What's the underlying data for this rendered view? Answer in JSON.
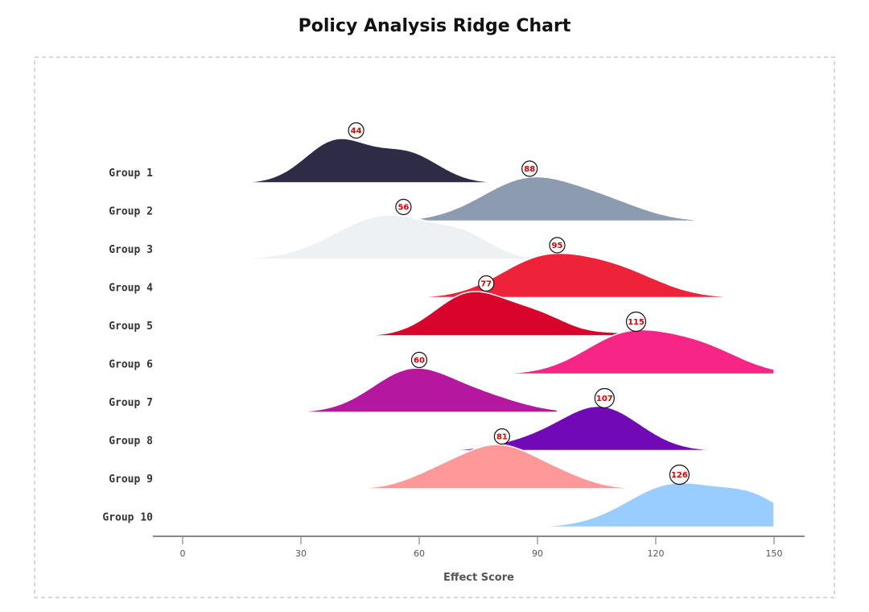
{
  "chart_data": {
    "type": "ridgeline",
    "title": "Policy Analysis Ridge Chart",
    "xlabel": "Effect Score",
    "xlim": [
      -8,
      158
    ],
    "xticks": [
      0,
      30,
      60,
      90,
      120,
      150
    ],
    "tick_labels": [
      "0",
      "30",
      "60",
      "90",
      "120",
      "150"
    ],
    "series": [
      {
        "name": "Group 1",
        "peak": 44,
        "color": "#2d2b45",
        "range": [
          10,
          82
        ],
        "components": [
          {
            "mu": 39,
            "sigma": 8,
            "w": 1.0
          },
          {
            "mu": 57,
            "sigma": 8,
            "w": 0.7
          }
        ]
      },
      {
        "name": "Group 2",
        "peak": 88,
        "color": "#8c9bb0",
        "range": [
          48,
          130
        ],
        "components": [
          {
            "mu": 88,
            "sigma": 12,
            "w": 1.0
          },
          {
            "mu": 108,
            "sigma": 10,
            "w": 0.35
          }
        ]
      },
      {
        "name": "Group 3",
        "peak": 56,
        "color": "#edf1f4",
        "range": [
          15,
          92
        ],
        "components": [
          {
            "mu": 52,
            "sigma": 13,
            "w": 1.0
          },
          {
            "mu": 72,
            "sigma": 7,
            "w": 0.35
          }
        ]
      },
      {
        "name": "Group 4",
        "peak": 95,
        "color": "#ee2339",
        "range": [
          56,
          140
        ],
        "components": [
          {
            "mu": 91,
            "sigma": 11,
            "w": 1.0
          },
          {
            "mu": 110,
            "sigma": 11,
            "w": 0.7
          }
        ]
      },
      {
        "name": "Group 5",
        "peak": 77,
        "color": "#d9042b",
        "range": [
          45,
          130
        ],
        "components": [
          {
            "mu": 73,
            "sigma": 9,
            "w": 1.0
          },
          {
            "mu": 90,
            "sigma": 8,
            "w": 0.45
          },
          {
            "mu": 110,
            "sigma": 5,
            "w": 0.06
          }
        ]
      },
      {
        "name": "Group 6",
        "peak": 115,
        "color": "#f72585",
        "range": [
          80,
          150
        ],
        "components": [
          {
            "mu": 113,
            "sigma": 11,
            "w": 1.0
          },
          {
            "mu": 132,
            "sigma": 10,
            "w": 0.6
          }
        ]
      },
      {
        "name": "Group 7",
        "peak": 60,
        "color": "#b5179e",
        "range": [
          25,
          95
        ],
        "components": [
          {
            "mu": 58,
            "sigma": 10,
            "w": 1.0
          },
          {
            "mu": 76,
            "sigma": 10,
            "w": 0.35
          }
        ]
      },
      {
        "name": "Group 8",
        "peak": 107,
        "color": "#7209b7",
        "range": [
          65,
          150
        ],
        "components": [
          {
            "mu": 106,
            "sigma": 10,
            "w": 1.0
          },
          {
            "mu": 88,
            "sigma": 9,
            "w": 0.18
          }
        ]
      },
      {
        "name": "Group 9",
        "peak": 81,
        "color": "#ff9999",
        "range": [
          45,
          115
        ],
        "components": [
          {
            "mu": 80,
            "sigma": 9,
            "w": 1.0
          },
          {
            "mu": 65,
            "sigma": 8,
            "w": 0.35
          },
          {
            "mu": 95,
            "sigma": 8,
            "w": 0.3
          }
        ]
      },
      {
        "name": "Group 10",
        "peak": 126,
        "color": "#99ccff",
        "range": [
          90,
          150
        ],
        "components": [
          {
            "mu": 125,
            "sigma": 12,
            "w": 1.0
          },
          {
            "mu": 145,
            "sigma": 8,
            "w": 0.55
          }
        ]
      }
    ]
  }
}
